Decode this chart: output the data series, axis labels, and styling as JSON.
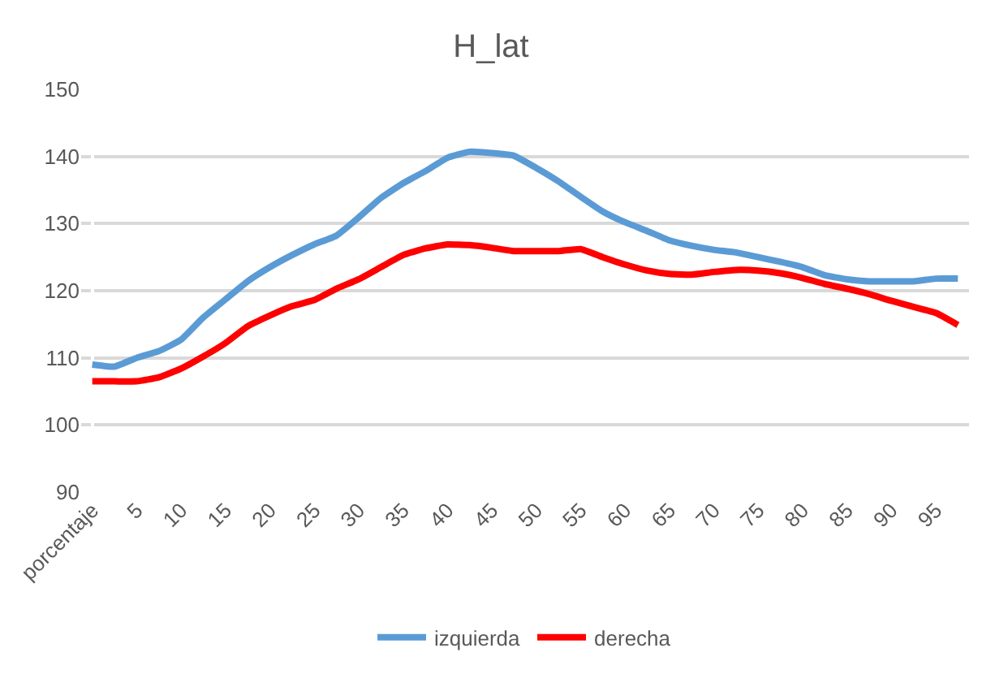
{
  "chart_data": {
    "type": "line",
    "title": "H_lat",
    "categories": [
      "porcentaje",
      null,
      "5",
      null,
      "10",
      null,
      "15",
      null,
      "20",
      null,
      "25",
      null,
      "30",
      null,
      "35",
      null,
      "40",
      null,
      "45",
      null,
      "50",
      null,
      "55",
      null,
      "60",
      null,
      "65",
      null,
      "70",
      null,
      "75",
      null,
      "80",
      null,
      "85",
      null,
      "90",
      null,
      "95",
      null
    ],
    "series": [
      {
        "name": "izquierda",
        "color": "#5b9bd5",
        "values": [
          109,
          108.7,
          110,
          111,
          112.7,
          116,
          118.7,
          121.4,
          123.5,
          125.3,
          126.9,
          128.2,
          130.9,
          133.8,
          136,
          137.8,
          139.8,
          140.7,
          140.5,
          140.1,
          138.3,
          136.3,
          134,
          131.8,
          130.2,
          128.9,
          127.5,
          126.7,
          126.1,
          125.7,
          125,
          124.3,
          123.5,
          122.3,
          121.7,
          121.4,
          121.4,
          121.4,
          121.8,
          121.8
        ]
      },
      {
        "name": "derecha",
        "color": "#ff0000",
        "values": [
          106.5,
          106.5,
          106.5,
          107.1,
          108.4,
          110.2,
          112.2,
          114.7,
          116.3,
          117.7,
          118.6,
          120.3,
          121.7,
          123.5,
          125.3,
          126.3,
          126.9,
          126.8,
          126.4,
          125.9,
          125.9,
          125.9,
          126.2,
          125,
          123.9,
          123,
          122.5,
          122.4,
          122.8,
          123.1,
          123,
          122.6,
          121.9,
          121,
          120.3,
          119.5,
          118.5,
          117.6,
          116.7,
          114.9
        ]
      }
    ],
    "ylim": [
      90,
      150
    ],
    "yticks": [
      90,
      100,
      110,
      120,
      130,
      140,
      150
    ],
    "grid": "y",
    "legend": "bottom",
    "marker": "none",
    "line_style": "solid"
  }
}
